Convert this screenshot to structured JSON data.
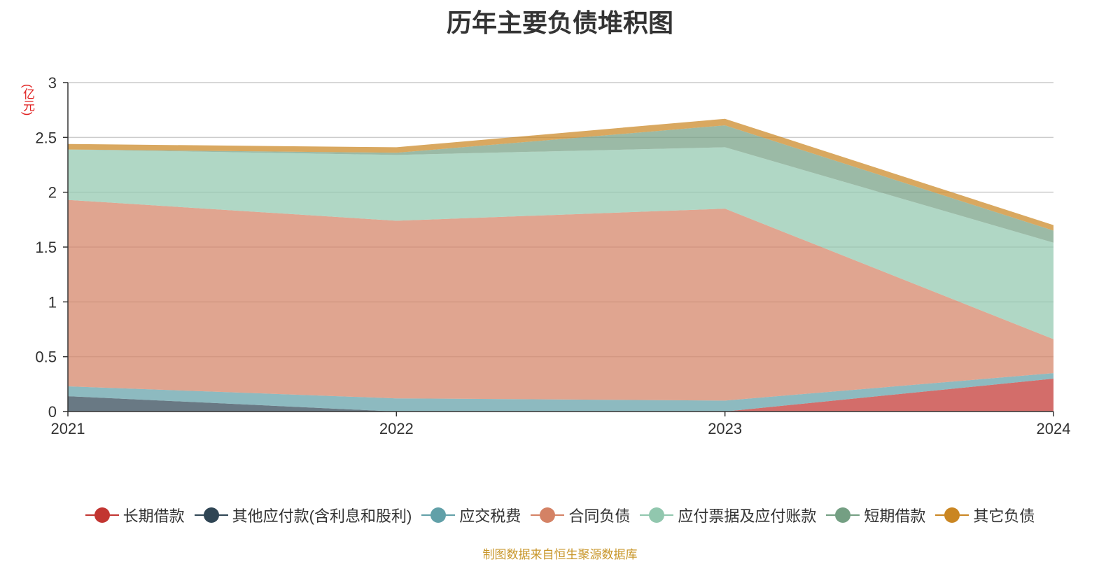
{
  "chart_data": {
    "type": "area",
    "stacked": true,
    "title": "历年主要负债堆积图",
    "unit_label": "(亿元)",
    "x": [
      "2021",
      "2022",
      "2023",
      "2024"
    ],
    "ylim": [
      0,
      3
    ],
    "yticks": [
      "0",
      "0.5",
      "1",
      "1.5",
      "2",
      "2.5",
      "3"
    ],
    "grid": true,
    "legend_position": "bottom",
    "series": [
      {
        "name": "长期借款",
        "color": "#c23531",
        "values": [
          0,
          0,
          0,
          0.3
        ]
      },
      {
        "name": "其他应付款(含利息和股利)",
        "color": "#2f4554",
        "values": [
          0.14,
          0,
          0,
          0
        ]
      },
      {
        "name": "应交税费",
        "color": "#61a0a8",
        "values": [
          0.09,
          0.12,
          0.1,
          0.05
        ]
      },
      {
        "name": "合同负债",
        "color": "#d48265",
        "values": [
          1.7,
          1.62,
          1.75,
          0.31
        ]
      },
      {
        "name": "应付票据及应付账款",
        "color": "#91c7ae",
        "values": [
          0.46,
          0.6,
          0.56,
          0.88
        ]
      },
      {
        "name": "短期借款",
        "color": "#749f83",
        "values": [
          0,
          0.02,
          0.2,
          0.11
        ]
      },
      {
        "name": "其它负债",
        "color": "#ca8622",
        "values": [
          0.05,
          0.05,
          0.06,
          0.05
        ]
      }
    ]
  },
  "footer": {
    "source": "制图数据来自恒生聚源数据库"
  }
}
